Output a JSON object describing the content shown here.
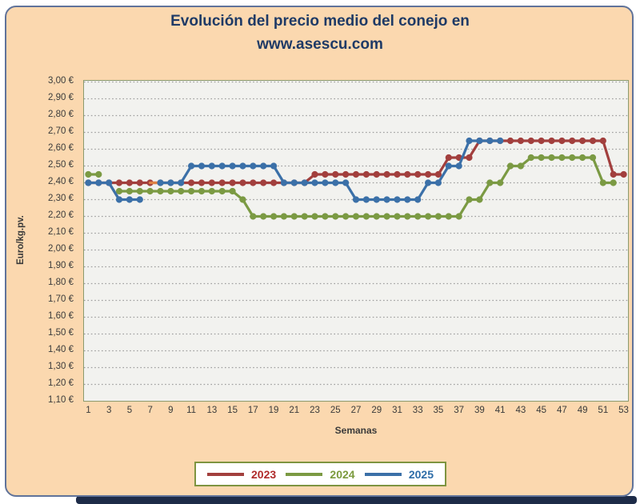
{
  "window": {
    "page_background": "#ffffff",
    "card_background": "#FBD8AF",
    "card_border_color": "#60739A",
    "bottom_bar_color": "#1D2B48"
  },
  "title": {
    "line1": "Evolución del precio medio del conejo en",
    "line2": "www.asescu.com",
    "color": "#1E3A66"
  },
  "chart_data": {
    "type": "line",
    "title": "Evolución del precio medio del conejo en www.asescu.com",
    "xlabel": "Semanas",
    "ylabel": "Euro/kg.pv.",
    "x_range": [
      1,
      53
    ],
    "ylim": [
      1.1,
      3.0
    ],
    "y_step": 0.1,
    "grid": "horizontal-dotted",
    "plot_background": "#F2F2EF",
    "plot_frame_color": "#8B9A6D",
    "gridline_color": "#9E9E9E",
    "legend_position": "bottom",
    "x_tick_labels": [
      "1",
      "3",
      "5",
      "7",
      "9",
      "11",
      "13",
      "15",
      "17",
      "19",
      "21",
      "23",
      "25",
      "27",
      "29",
      "31",
      "33",
      "35",
      "37",
      "39",
      "41",
      "43",
      "45",
      "47",
      "49",
      "51",
      "53"
    ],
    "y_ticks": [
      {
        "value": 3.0,
        "label": "3,00 €"
      },
      {
        "value": 2.9,
        "label": "2,90 €"
      },
      {
        "value": 2.8,
        "label": "2,80 €"
      },
      {
        "value": 2.7,
        "label": "2,70 €"
      },
      {
        "value": 2.6,
        "label": "2,60 €"
      },
      {
        "value": 2.5,
        "label": "2,50 €"
      },
      {
        "value": 2.4,
        "label": "2,40 €"
      },
      {
        "value": 2.3,
        "label": "2,30 €"
      },
      {
        "value": 2.2,
        "label": "2,20 €"
      },
      {
        "value": 2.1,
        "label": "2,10 €"
      },
      {
        "value": 2.0,
        "label": "2,00 €"
      },
      {
        "value": 1.9,
        "label": "1,90 €"
      },
      {
        "value": 1.8,
        "label": "1,80 €"
      },
      {
        "value": 1.7,
        "label": "1,70 €"
      },
      {
        "value": 1.6,
        "label": "1,60 €"
      },
      {
        "value": 1.5,
        "label": "1,50 €"
      },
      {
        "value": 1.4,
        "label": "1,40 €"
      },
      {
        "value": 1.3,
        "label": "1,30 €"
      },
      {
        "value": 1.2,
        "label": "1,20 €"
      },
      {
        "value": 1.1,
        "label": "1,10 €"
      }
    ],
    "series": [
      {
        "name": "2023",
        "color": "#A23F3D",
        "values": [
          2.4,
          2.4,
          2.4,
          2.4,
          2.4,
          2.4,
          2.4,
          2.4,
          2.4,
          2.4,
          2.4,
          2.4,
          2.4,
          2.4,
          2.4,
          2.4,
          2.4,
          2.4,
          2.4,
          2.4,
          2.4,
          2.4,
          2.45,
          2.45,
          2.45,
          2.45,
          2.45,
          2.45,
          2.45,
          2.45,
          2.45,
          2.45,
          2.45,
          2.45,
          2.45,
          2.55,
          2.55,
          2.55,
          2.65,
          2.65,
          2.65,
          2.65,
          2.65,
          2.65,
          2.65,
          2.65,
          2.65,
          2.65,
          2.65,
          2.65,
          2.65,
          2.45,
          2.45
        ]
      },
      {
        "name": "2024",
        "color": "#7B9A43",
        "values": [
          2.45,
          2.45,
          null,
          2.35,
          2.35,
          2.35,
          2.35,
          2.35,
          2.35,
          2.35,
          2.35,
          2.35,
          2.35,
          2.35,
          2.35,
          2.3,
          2.2,
          2.2,
          2.2,
          2.2,
          2.2,
          2.2,
          2.2,
          2.2,
          2.2,
          2.2,
          2.2,
          2.2,
          2.2,
          2.2,
          2.2,
          2.2,
          2.2,
          2.2,
          2.2,
          2.2,
          2.2,
          2.3,
          2.3,
          2.4,
          2.4,
          2.5,
          2.5,
          2.55,
          2.55,
          2.55,
          2.55,
          2.55,
          2.55,
          2.55,
          2.4,
          2.4,
          null
        ]
      },
      {
        "name": "2025",
        "color": "#3B70A8",
        "values": [
          2.4,
          2.4,
          2.4,
          2.3,
          2.3,
          2.3,
          null,
          2.4,
          2.4,
          2.4,
          2.5,
          2.5,
          2.5,
          2.5,
          2.5,
          2.5,
          2.5,
          2.5,
          2.5,
          2.4,
          2.4,
          2.4,
          2.4,
          2.4,
          2.4,
          2.4,
          2.3,
          2.3,
          2.3,
          2.3,
          2.3,
          2.3,
          2.3,
          2.4,
          2.4,
          2.5,
          2.5,
          2.65,
          2.65,
          2.65,
          2.65,
          null,
          null,
          null,
          null,
          null,
          null,
          null,
          null,
          null,
          null,
          null,
          null
        ]
      }
    ],
    "ghost_segments": [
      {
        "color": "#DF8244",
        "points": [
          [
            3,
            2.4
          ],
          [
            4,
            2.3
          ]
        ]
      },
      {
        "color": "#DF8244",
        "points": [
          [
            7,
            2.4
          ],
          [
            8,
            2.4
          ]
        ]
      }
    ]
  },
  "legend": {
    "border_color": "#7E9440",
    "items": [
      {
        "label": "2023",
        "line_color": "#A23F3D",
        "text_color": "#B02B2B"
      },
      {
        "label": "2024",
        "line_color": "#7B9A43",
        "text_color": "#7B9A3D"
      },
      {
        "label": "2025",
        "line_color": "#3B70A8",
        "text_color": "#2E6DA8"
      }
    ]
  }
}
